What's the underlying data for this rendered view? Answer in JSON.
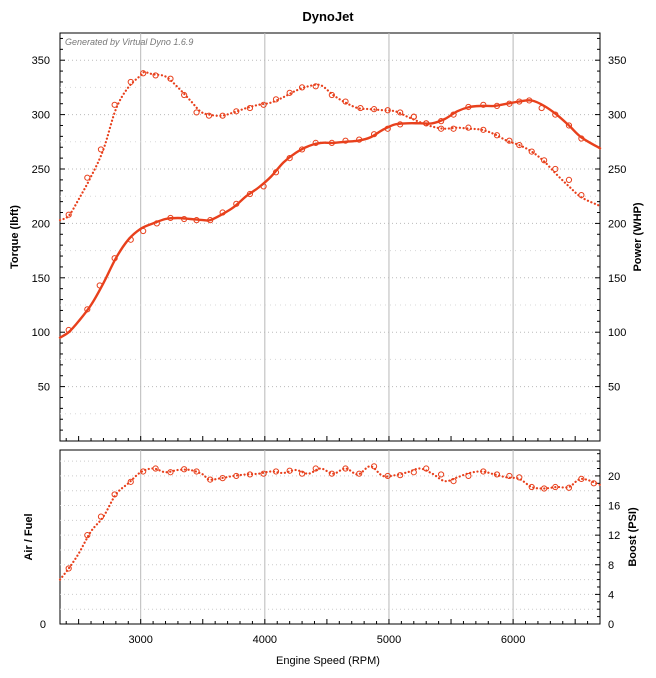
{
  "chart_data": [
    {
      "type": "line",
      "title": "DynoJet",
      "annotation": "Generated by Virtual Dyno 1.6.9",
      "xlabel": "Engine Speed (RPM)",
      "ylabel_left": "Torque (lbft)",
      "ylabel_right": "Power (WHP)",
      "xlim": [
        2350,
        6700
      ],
      "ylim": [
        0,
        375
      ],
      "x_ticks": [
        3000,
        4000,
        5000,
        6000
      ],
      "y_ticks": [
        50,
        100,
        150,
        200,
        250,
        300,
        350
      ],
      "grid": true,
      "line_color": "#e8401c",
      "series": [
        {
          "style": "solid",
          "points": [
            [
              2350,
              95
            ],
            [
              2420,
              100
            ],
            [
              2500,
              110
            ],
            [
              2600,
              125
            ],
            [
              2700,
              145
            ],
            [
              2800,
              168
            ],
            [
              2900,
              185
            ],
            [
              3000,
              195
            ],
            [
              3100,
              200
            ],
            [
              3200,
              204
            ],
            [
              3300,
              205
            ],
            [
              3400,
              204
            ],
            [
              3500,
              203
            ],
            [
              3560,
              203
            ],
            [
              3650,
              208
            ],
            [
              3750,
              215
            ],
            [
              3850,
              225
            ],
            [
              3950,
              233
            ],
            [
              4050,
              243
            ],
            [
              4150,
              256
            ],
            [
              4250,
              265
            ],
            [
              4350,
              271
            ],
            [
              4450,
              274
            ],
            [
              4550,
              274
            ],
            [
              4650,
              275
            ],
            [
              4750,
              276
            ],
            [
              4850,
              279
            ],
            [
              4950,
              286
            ],
            [
              5050,
              291
            ],
            [
              5150,
              292
            ],
            [
              5250,
              292
            ],
            [
              5350,
              292
            ],
            [
              5450,
              296
            ],
            [
              5550,
              303
            ],
            [
              5650,
              307
            ],
            [
              5750,
              308
            ],
            [
              5850,
              308
            ],
            [
              5950,
              310
            ],
            [
              6050,
              312
            ],
            [
              6150,
              313
            ],
            [
              6250,
              308
            ],
            [
              6350,
              300
            ],
            [
              6450,
              290
            ],
            [
              6550,
              279
            ],
            [
              6700,
              269
            ]
          ],
          "markers": [
            [
              2420,
              102
            ],
            [
              2570,
              121
            ],
            [
              2670,
              143
            ],
            [
              2790,
              168
            ],
            [
              2920,
              185
            ],
            [
              3020,
              193
            ],
            [
              3130,
              200
            ],
            [
              3240,
              205
            ],
            [
              3350,
              204
            ],
            [
              3450,
              203
            ],
            [
              3560,
              203
            ],
            [
              3660,
              210
            ],
            [
              3770,
              218
            ],
            [
              3880,
              227
            ],
            [
              3990,
              234
            ],
            [
              4090,
              247
            ],
            [
              4200,
              260
            ],
            [
              4300,
              268
            ],
            [
              4410,
              274
            ],
            [
              4540,
              274
            ],
            [
              4650,
              276
            ],
            [
              4760,
              277
            ],
            [
              4880,
              282
            ],
            [
              4990,
              287
            ],
            [
              5090,
              291
            ],
            [
              5200,
              298
            ],
            [
              5300,
              292
            ],
            [
              5420,
              294
            ],
            [
              5520,
              300
            ],
            [
              5640,
              307
            ],
            [
              5760,
              309
            ],
            [
              5870,
              308
            ],
            [
              5970,
              310
            ],
            [
              6050,
              312
            ],
            [
              6130,
              313
            ],
            [
              6230,
              306
            ],
            [
              6340,
              300
            ],
            [
              6450,
              290
            ],
            [
              6550,
              278
            ]
          ]
        },
        {
          "style": "dotted",
          "points": [
            [
              2350,
              203
            ],
            [
              2420,
              207
            ],
            [
              2500,
              222
            ],
            [
              2600,
              243
            ],
            [
              2700,
              268
            ],
            [
              2800,
              305
            ],
            [
              2900,
              325
            ],
            [
              3000,
              336
            ],
            [
              3030,
              339
            ],
            [
              3100,
              337
            ],
            [
              3200,
              335
            ],
            [
              3300,
              325
            ],
            [
              3400,
              313
            ],
            [
              3480,
              303
            ],
            [
              3550,
              300
            ],
            [
              3650,
              299
            ],
            [
              3750,
              302
            ],
            [
              3850,
              306
            ],
            [
              3950,
              309
            ],
            [
              4050,
              311
            ],
            [
              4150,
              316
            ],
            [
              4250,
              322
            ],
            [
              4350,
              326
            ],
            [
              4450,
              327
            ],
            [
              4550,
              318
            ],
            [
              4650,
              311
            ],
            [
              4750,
              306
            ],
            [
              4850,
              305
            ],
            [
              4950,
              304
            ],
            [
              5050,
              303
            ],
            [
              5150,
              298
            ],
            [
              5250,
              293
            ],
            [
              5350,
              289
            ],
            [
              5450,
              287
            ],
            [
              5550,
              288
            ],
            [
              5650,
              287
            ],
            [
              5750,
              286
            ],
            [
              5850,
              282
            ],
            [
              5950,
              276
            ],
            [
              6050,
              272
            ],
            [
              6150,
              266
            ],
            [
              6250,
              257
            ],
            [
              6350,
              245
            ],
            [
              6450,
              234
            ],
            [
              6550,
              224
            ],
            [
              6700,
              216
            ]
          ],
          "markers": [
            [
              2420,
              208
            ],
            [
              2570,
              242
            ],
            [
              2680,
              268
            ],
            [
              2790,
              309
            ],
            [
              2920,
              330
            ],
            [
              3020,
              338
            ],
            [
              3120,
              336
            ],
            [
              3240,
              333
            ],
            [
              3350,
              318
            ],
            [
              3450,
              302
            ],
            [
              3550,
              299
            ],
            [
              3660,
              299
            ],
            [
              3770,
              303
            ],
            [
              3880,
              306
            ],
            [
              3990,
              309
            ],
            [
              4090,
              314
            ],
            [
              4200,
              320
            ],
            [
              4300,
              325
            ],
            [
              4410,
              326
            ],
            [
              4540,
              318
            ],
            [
              4650,
              312
            ],
            [
              4770,
              306
            ],
            [
              4880,
              305
            ],
            [
              4990,
              304
            ],
            [
              5090,
              302
            ],
            [
              5200,
              298
            ],
            [
              5300,
              292
            ],
            [
              5420,
              287
            ],
            [
              5520,
              287
            ],
            [
              5640,
              288
            ],
            [
              5760,
              286
            ],
            [
              5870,
              281
            ],
            [
              5970,
              276
            ],
            [
              6050,
              272
            ],
            [
              6150,
              266
            ],
            [
              6250,
              258
            ],
            [
              6340,
              250
            ],
            [
              6450,
              240
            ],
            [
              6550,
              226
            ]
          ]
        }
      ]
    },
    {
      "type": "line",
      "xlabel": "Engine Speed (RPM)",
      "ylabel_left": "Air / Fuel",
      "ylabel_right": "Boost (PSI)",
      "xlim": [
        2350,
        6700
      ],
      "ylim": [
        0,
        23.5
      ],
      "left_ticks": [
        "0"
      ],
      "right_ticks": [
        0,
        4,
        8,
        12,
        16,
        20
      ],
      "x_ticks": [
        3000,
        4000,
        5000,
        6000
      ],
      "grid": true,
      "line_color": "#e8401c",
      "series": [
        {
          "style": "dotted",
          "points": [
            [
              2350,
              6
            ],
            [
              2420,
              7.5
            ],
            [
              2500,
              9.5
            ],
            [
              2600,
              12.5
            ],
            [
              2700,
              14.5
            ],
            [
              2800,
              17.5
            ],
            [
              2900,
              19
            ],
            [
              3000,
              20.5
            ],
            [
              3100,
              21
            ],
            [
              3200,
              20.5
            ],
            [
              3300,
              20.8
            ],
            [
              3400,
              20.8
            ],
            [
              3500,
              20.2
            ],
            [
              3550,
              19.5
            ],
            [
              3650,
              19.7
            ],
            [
              3750,
              20
            ],
            [
              3850,
              20.2
            ],
            [
              3950,
              20.3
            ],
            [
              4050,
              20.6
            ],
            [
              4150,
              20.4
            ],
            [
              4250,
              20.8
            ],
            [
              4350,
              20.3
            ],
            [
              4450,
              21
            ],
            [
              4550,
              20.3
            ],
            [
              4650,
              21
            ],
            [
              4750,
              20.2
            ],
            [
              4850,
              21.3
            ],
            [
              4950,
              20
            ],
            [
              5050,
              20.1
            ],
            [
              5150,
              20.5
            ],
            [
              5250,
              21
            ],
            [
              5350,
              20.3
            ],
            [
              5450,
              19.3
            ],
            [
              5550,
              19.8
            ],
            [
              5650,
              20.4
            ],
            [
              5750,
              20.6
            ],
            [
              5850,
              20.2
            ],
            [
              5950,
              19.8
            ],
            [
              6050,
              19.6
            ],
            [
              6150,
              18.5
            ],
            [
              6250,
              18.3
            ],
            [
              6350,
              18.5
            ],
            [
              6450,
              18.5
            ],
            [
              6550,
              19.6
            ],
            [
              6700,
              18.8
            ]
          ],
          "markers": [
            [
              2420,
              7.5
            ],
            [
              2570,
              12
            ],
            [
              2680,
              14.5
            ],
            [
              2790,
              17.5
            ],
            [
              2920,
              19.2
            ],
            [
              3020,
              20.6
            ],
            [
              3120,
              21
            ],
            [
              3240,
              20.5
            ],
            [
              3350,
              20.9
            ],
            [
              3450,
              20.6
            ],
            [
              3560,
              19.5
            ],
            [
              3660,
              19.7
            ],
            [
              3770,
              20
            ],
            [
              3880,
              20.2
            ],
            [
              3990,
              20.3
            ],
            [
              4090,
              20.6
            ],
            [
              4200,
              20.7
            ],
            [
              4300,
              20.3
            ],
            [
              4410,
              21
            ],
            [
              4540,
              20.3
            ],
            [
              4650,
              21
            ],
            [
              4760,
              20.3
            ],
            [
              4880,
              21.3
            ],
            [
              4990,
              20
            ],
            [
              5090,
              20.1
            ],
            [
              5200,
              20.5
            ],
            [
              5300,
              21
            ],
            [
              5420,
              20.2
            ],
            [
              5520,
              19.3
            ],
            [
              5640,
              20
            ],
            [
              5760,
              20.6
            ],
            [
              5870,
              20.2
            ],
            [
              5970,
              20
            ],
            [
              6050,
              19.8
            ],
            [
              6150,
              18.5
            ],
            [
              6250,
              18.3
            ],
            [
              6340,
              18.5
            ],
            [
              6450,
              18.4
            ],
            [
              6550,
              19.6
            ],
            [
              6650,
              19
            ]
          ]
        }
      ]
    }
  ]
}
